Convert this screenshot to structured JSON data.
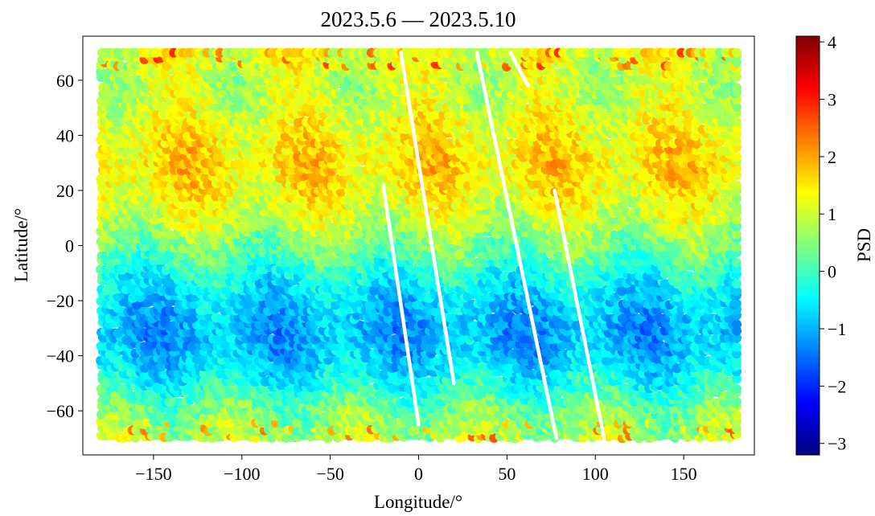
{
  "chart_data": {
    "type": "scatter",
    "title": "2023.5.6 — 2023.5.10",
    "xlabel": "Longitude/°",
    "ylabel": "Latitude/°",
    "xlim": [
      -190,
      190
    ],
    "ylim": [
      -76,
      76
    ],
    "xticks": [
      -150,
      -100,
      -50,
      0,
      50,
      100,
      150
    ],
    "yticks": [
      -60,
      -40,
      -20,
      0,
      20,
      40,
      60
    ],
    "xtick_labels": [
      "−150",
      "−100",
      "−50",
      "0",
      "50",
      "100",
      "150"
    ],
    "ytick_labels": [
      "−60",
      "−40",
      "−20",
      "0",
      "20",
      "40",
      "60"
    ],
    "grid": false,
    "colormap": "jet",
    "colorbar": {
      "label": "PSD",
      "vmin": -3.2,
      "vmax": 4.1,
      "ticks": [
        -3,
        -2,
        -1,
        0,
        1,
        2,
        3,
        4
      ],
      "tick_labels": [
        "−3",
        "−2",
        "−1",
        "0",
        "1",
        "2",
        "3",
        "4"
      ]
    },
    "data_extent": {
      "longitude": [
        -180,
        180
      ],
      "latitude": [
        -70,
        70
      ]
    },
    "psd_by_latitude": [
      {
        "lat": 70,
        "psd": 1.2
      },
      {
        "lat": 60,
        "psd": 0.9
      },
      {
        "lat": 50,
        "psd": 1.1
      },
      {
        "lat": 40,
        "psd": 1.4
      },
      {
        "lat": 30,
        "psd": 1.6
      },
      {
        "lat": 20,
        "psd": 1.4
      },
      {
        "lat": 10,
        "psd": 1.0
      },
      {
        "lat": 0,
        "psd": 0.4
      },
      {
        "lat": -10,
        "psd": -0.3
      },
      {
        "lat": -20,
        "psd": -0.8
      },
      {
        "lat": -30,
        "psd": -1.1
      },
      {
        "lat": -40,
        "psd": -0.9
      },
      {
        "lat": -50,
        "psd": -0.3
      },
      {
        "lat": -60,
        "psd": 0.4
      },
      {
        "lat": -70,
        "psd": 0.8
      }
    ],
    "gaps": [
      {
        "lon_top": -10,
        "lat_top": 70,
        "lon_bottom": 20,
        "lat_bottom": -50
      },
      {
        "lon_top": -20,
        "lat_top": 22,
        "lon_bottom": 0,
        "lat_bottom": -65
      },
      {
        "lon_top": 33,
        "lat_top": 70,
        "lon_bottom": 78,
        "lat_bottom": -70
      },
      {
        "lon_top": 52,
        "lat_top": 70,
        "lon_bottom": 62,
        "lat_bottom": 58
      },
      {
        "lon_top": 77,
        "lat_top": 20,
        "lon_bottom": 105,
        "lat_bottom": -70
      }
    ]
  }
}
